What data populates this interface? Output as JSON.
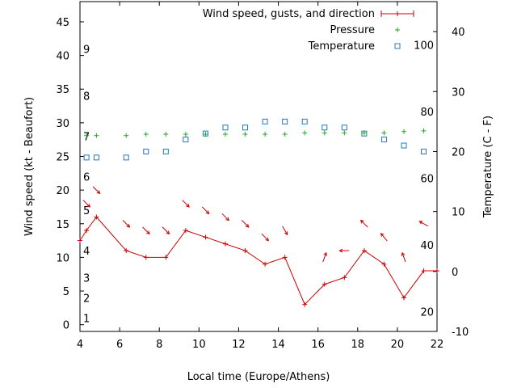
{
  "chart_data": {
    "type": "line",
    "xlabel": "Local time (Europe/Athens)",
    "ylabel": "Wind speed (kt - Beaufort)",
    "y2label": "Temperature (C - F)",
    "xlim": [
      4,
      22
    ],
    "ylim": [
      -1,
      48
    ],
    "y2lim": [
      -10,
      45
    ],
    "x_ticks": [
      "4",
      "6",
      "8",
      "10",
      "12",
      "14",
      "16",
      "18",
      "20",
      "22"
    ],
    "y_ticks": [
      "0",
      "5",
      "10",
      "15",
      "20",
      "25",
      "30",
      "35",
      "40",
      "45"
    ],
    "y2_ticks": [
      "-10",
      "0",
      "10",
      "20",
      "30",
      "40"
    ],
    "beaufort_labels": [
      "1",
      "2",
      "3",
      "4",
      "5",
      "6",
      "7",
      "8",
      "9"
    ],
    "beaufort_values": [
      1,
      4,
      7,
      11,
      17,
      22,
      28,
      34,
      41
    ],
    "fahrenheit_labels": [
      "20",
      "40",
      "60",
      "80",
      "100"
    ],
    "fahrenheit_values": [
      20,
      40,
      60,
      80,
      100
    ],
    "legend": {
      "position": "top-right",
      "wind": "Wind speed, gusts, and direction",
      "pressure": "Pressure",
      "temperature": "Temperature"
    },
    "grid": false,
    "series": [
      {
        "name": "Wind speed, gusts, and direction",
        "color": "#cc0000",
        "x": [
          4.0,
          4.33,
          4.83,
          6.33,
          7.33,
          8.33,
          9.33,
          10.33,
          11.33,
          12.33,
          13.33,
          14.33,
          15.33,
          16.33,
          17.33,
          18.33,
          19.33,
          20.33,
          21.33,
          22.0
        ],
        "values": [
          12.5,
          14,
          16,
          11,
          10,
          10,
          14,
          13,
          12,
          11,
          9,
          10,
          3,
          6,
          7,
          11,
          9,
          4,
          8,
          8
        ]
      },
      {
        "name": "Pressure",
        "color": "#22aa22",
        "x": [
          4.33,
          4.83,
          6.33,
          7.33,
          8.33,
          9.33,
          10.33,
          11.33,
          12.33,
          13.33,
          14.33,
          15.33,
          16.33,
          17.33,
          18.33,
          19.33,
          20.33,
          21.33
        ],
        "values": [
          28.1,
          28.1,
          28.1,
          28.3,
          28.3,
          28.3,
          28.3,
          28.3,
          28.3,
          28.3,
          28.3,
          28.5,
          28.5,
          28.5,
          28.5,
          28.5,
          28.7,
          28.8
        ]
      },
      {
        "name": "Temperature",
        "color": "#1f78c8",
        "x": [
          4.33,
          4.83,
          6.33,
          7.33,
          8.33,
          9.33,
          10.33,
          11.33,
          12.33,
          13.33,
          14.33,
          15.33,
          16.33,
          17.33,
          18.33,
          19.33,
          20.33,
          21.33
        ],
        "values": [
          19,
          19,
          19,
          20,
          20,
          22,
          23,
          24,
          24,
          25,
          25,
          25,
          24,
          24,
          23,
          22,
          21,
          20
        ]
      }
    ],
    "wind_arrows": {
      "x": [
        4.33,
        4.83,
        6.33,
        7.33,
        8.33,
        9.33,
        10.33,
        11.33,
        12.33,
        13.33,
        14.33,
        16.33,
        17.33,
        18.33,
        19.33,
        20.33,
        21.33
      ],
      "y": [
        18,
        20,
        15,
        14,
        14,
        18,
        17,
        16,
        15,
        13,
        14,
        10,
        11,
        15,
        13,
        10,
        15
      ],
      "direction_deg": [
        135,
        135,
        135,
        135,
        135,
        135,
        135,
        135,
        135,
        135,
        150,
        20,
        270,
        315,
        320,
        340,
        300
      ]
    }
  }
}
